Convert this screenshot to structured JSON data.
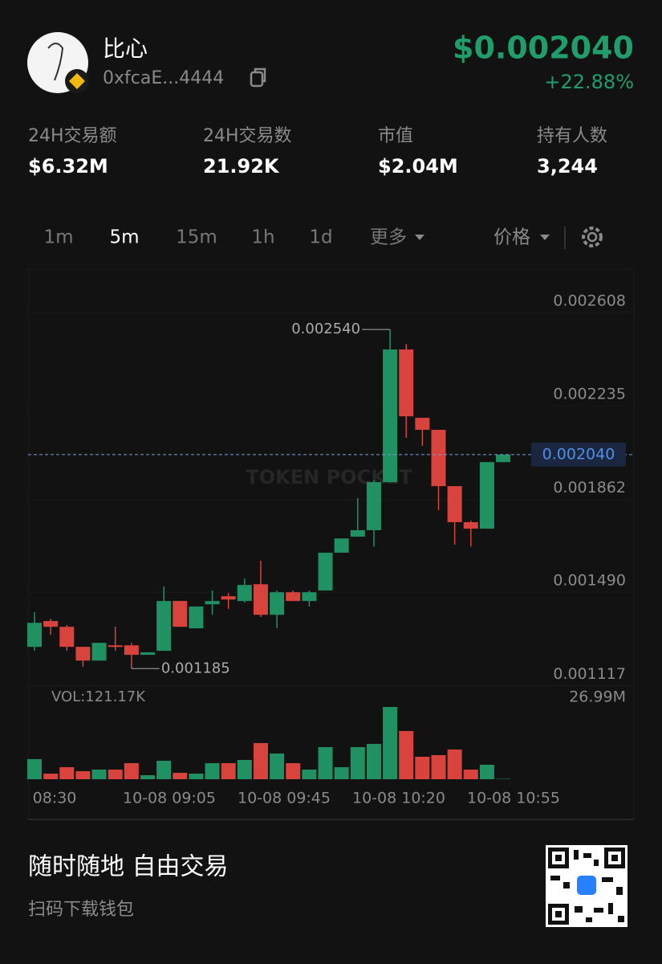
{
  "header": {
    "name": "比心",
    "address": "0xfcaE...4444",
    "price": "$0.002040",
    "change": "+22.88%"
  },
  "stats": [
    {
      "label": "24H交易额",
      "value": "$6.32M"
    },
    {
      "label": "24H交易数",
      "value": "21.92K"
    },
    {
      "label": "市值",
      "value": "$2.04M"
    },
    {
      "label": "持有人数",
      "value": "3,244"
    }
  ],
  "timeframes": [
    "1m",
    "5m",
    "15m",
    "1h",
    "1d",
    "更多"
  ],
  "active_timeframe_index": 1,
  "price_mode": "价格",
  "chart_data": {
    "type": "candlestick",
    "watermark": "TOKEN POCKET",
    "up_color": "#1f9163",
    "down_color": "#d9433e",
    "open": [
      0.001272,
      0.001375,
      0.001352,
      0.001272,
      0.001217,
      0.001278,
      0.001278,
      0.00124,
      0.001256,
      0.001455,
      0.001346,
      0.001442,
      0.001474,
      0.001455,
      0.001522,
      0.0014,
      0.00149,
      0.001455,
      0.001497,
      0.001648,
      0.001712,
      0.001738,
      0.00193,
      0.00246,
      0.002187,
      0.002139,
      0.001914,
      0.00177,
      0.001744,
      0.00201
    ],
    "high": [
      0.00141,
      0.001384,
      0.001359,
      0.001272,
      0.001288,
      0.001352,
      0.001288,
      0.00125,
      0.001513,
      0.001455,
      0.001433,
      0.001497,
      0.001487,
      0.001545,
      0.001616,
      0.001497,
      0.001497,
      0.001497,
      0.001648,
      0.001705,
      0.001866,
      0.001937,
      0.00254,
      0.002482,
      0.002187,
      0.002139,
      0.001914,
      0.001776,
      0.00201,
      0.002036
    ],
    "low": [
      0.001256,
      0.00132,
      0.001256,
      0.001192,
      0.001217,
      0.001256,
      0.001185,
      0.00124,
      0.001256,
      0.001352,
      0.001346,
      0.0014,
      0.001423,
      0.001449,
      0.001391,
      0.001346,
      0.001455,
      0.001433,
      0.001497,
      0.001648,
      0.001712,
      0.001673,
      0.00193,
      0.002107,
      0.002075,
      0.001818,
      0.00168,
      0.001673,
      0.001744,
      0.00201
    ],
    "close": [
      0.001368,
      0.001352,
      0.001272,
      0.001217,
      0.001288,
      0.001272,
      0.00124,
      0.00125,
      0.001455,
      0.001352,
      0.001433,
      0.001455,
      0.001461,
      0.001519,
      0.0014,
      0.00149,
      0.001455,
      0.00149,
      0.001648,
      0.001705,
      0.001738,
      0.00193,
      0.00246,
      0.002193,
      0.002139,
      0.001914,
      0.00177,
      0.001744,
      0.00201,
      0.00204
    ],
    "volume": [
      6.62,
      1.85,
      3.97,
      2.65,
      3.18,
      3.18,
      5.29,
      1.32,
      6.09,
      2.12,
      1.85,
      5.29,
      5.29,
      6.35,
      11.91,
      8.47,
      5.29,
      3.18,
      10.58,
      3.97,
      10.58,
      11.64,
      23.81,
      15.88,
      7.41,
      7.94,
      9.79,
      3.18,
      4.76,
      0.12117
    ],
    "ylim": [
      0.001096,
      0.002765
    ],
    "yticks": [
      0.002608,
      0.002235,
      0.001862,
      {
        "value": 0.00149,
        "label": "0.001490"
      },
      0.001117
    ],
    "current_price": {
      "value": 0.00204,
      "label": "0.002040"
    },
    "high_label": {
      "value": 0.00254,
      "label": "0.002540"
    },
    "low_label": {
      "value": 0.001185,
      "label": "0.001185"
    },
    "vol_ylim": [
      0,
      26.99
    ],
    "vol_ticks": [
      {
        "value": 26.99,
        "label": "26.99M"
      }
    ],
    "vol_label": "VOL:121.17K",
    "x_labels": [
      "08:30",
      "10-08 09:05",
      "10-08 09:45",
      "10-08 10:20",
      "10-08 10:55"
    ]
  },
  "footer": {
    "slogan": "随时随地 自由交易",
    "sub": "扫码下载钱包"
  }
}
